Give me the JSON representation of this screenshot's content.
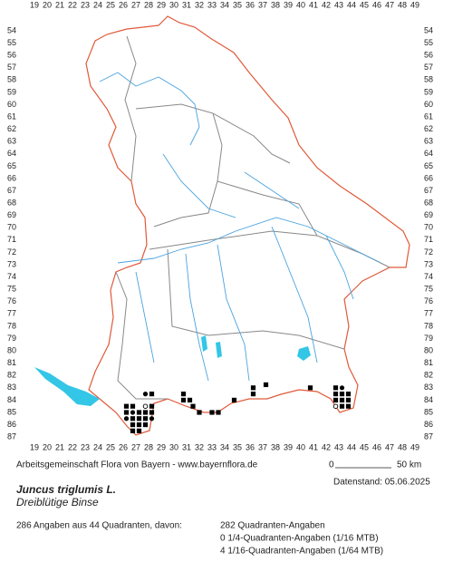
{
  "map": {
    "columns": [
      19,
      20,
      21,
      22,
      23,
      24,
      25,
      26,
      27,
      28,
      29,
      30,
      31,
      32,
      33,
      34,
      35,
      36,
      37,
      38,
      39,
      40,
      41,
      42,
      43,
      44,
      45,
      46,
      47,
      48,
      49
    ],
    "rows": [
      54,
      55,
      56,
      57,
      58,
      59,
      60,
      61,
      62,
      63,
      64,
      65,
      66,
      67,
      68,
      69,
      70,
      71,
      72,
      73,
      74,
      75,
      76,
      77,
      78,
      79,
      80,
      81,
      82,
      83,
      84,
      85,
      86,
      87
    ],
    "points": [
      {
        "x": 27.75,
        "y": 83.5,
        "symbol": "dot"
      },
      {
        "x": 28.25,
        "y": 83.5,
        "symbol": "square"
      },
      {
        "x": 30.75,
        "y": 83.5,
        "symbol": "square"
      },
      {
        "x": 31.25,
        "y": 84,
        "symbol": "square"
      },
      {
        "x": 30.75,
        "y": 84,
        "symbol": "square"
      },
      {
        "x": 31.5,
        "y": 84.5,
        "symbol": "square"
      },
      {
        "x": 32,
        "y": 85,
        "symbol": "square"
      },
      {
        "x": 33,
        "y": 85,
        "symbol": "square"
      },
      {
        "x": 33.5,
        "y": 85,
        "symbol": "square"
      },
      {
        "x": 34.75,
        "y": 84,
        "symbol": "square"
      },
      {
        "x": 36.25,
        "y": 83,
        "symbol": "square"
      },
      {
        "x": 36.25,
        "y": 83.5,
        "symbol": "square"
      },
      {
        "x": 37.25,
        "y": 82.75,
        "symbol": "square"
      },
      {
        "x": 40.75,
        "y": 83,
        "symbol": "square"
      },
      {
        "x": 42.75,
        "y": 83,
        "symbol": "square"
      },
      {
        "x": 43.25,
        "y": 83,
        "symbol": "dot"
      },
      {
        "x": 42.75,
        "y": 83.5,
        "symbol": "square"
      },
      {
        "x": 43.25,
        "y": 83.5,
        "symbol": "square"
      },
      {
        "x": 43.75,
        "y": 83.5,
        "symbol": "square"
      },
      {
        "x": 42.75,
        "y": 84,
        "symbol": "square"
      },
      {
        "x": 43.25,
        "y": 84,
        "symbol": "square"
      },
      {
        "x": 43.75,
        "y": 84,
        "symbol": "square"
      },
      {
        "x": 42.75,
        "y": 84.5,
        "symbol": "circle"
      },
      {
        "x": 43.25,
        "y": 84.5,
        "symbol": "square"
      },
      {
        "x": 43.75,
        "y": 84.5,
        "symbol": "square"
      },
      {
        "x": 26.25,
        "y": 84.5,
        "symbol": "square"
      },
      {
        "x": 26.75,
        "y": 84.5,
        "symbol": "square"
      },
      {
        "x": 27.75,
        "y": 84.5,
        "symbol": "circle"
      },
      {
        "x": 28.25,
        "y": 84.5,
        "symbol": "square"
      },
      {
        "x": 26.25,
        "y": 85,
        "symbol": "square"
      },
      {
        "x": 26.75,
        "y": 85,
        "symbol": "dot"
      },
      {
        "x": 27.25,
        "y": 85,
        "symbol": "square"
      },
      {
        "x": 27.75,
        "y": 85,
        "symbol": "square"
      },
      {
        "x": 28.25,
        "y": 85,
        "symbol": "square"
      },
      {
        "x": 26.25,
        "y": 85.5,
        "symbol": "dot"
      },
      {
        "x": 26.75,
        "y": 85.5,
        "symbol": "square"
      },
      {
        "x": 27.25,
        "y": 85.5,
        "symbol": "square"
      },
      {
        "x": 27.75,
        "y": 85.5,
        "symbol": "square"
      },
      {
        "x": 28.25,
        "y": 85.5,
        "symbol": "dot"
      },
      {
        "x": 26.75,
        "y": 86,
        "symbol": "square"
      },
      {
        "x": 27.25,
        "y": 86,
        "symbol": "square"
      },
      {
        "x": 27.75,
        "y": 86,
        "symbol": "square"
      },
      {
        "x": 26.75,
        "y": 86.5,
        "symbol": "square"
      },
      {
        "x": 27.25,
        "y": 86.5,
        "symbol": "square"
      }
    ]
  },
  "footer": {
    "credit": "Arbeitsgemeinschaft Flora von Bayern - www.bayernflora.de",
    "scale_zero": "0",
    "scale_label": "50 km",
    "date": "Datenstand: 05.06.2025",
    "species": "Juncus triglumis L.",
    "common_name": "Dreiblütige Binse",
    "summary": "286 Angaben aus 44 Quadranten, davon:",
    "stats": [
      "282 Quadranten-Angaben",
      "0 1/4-Quadranten-Angaben (1/16 MTB)",
      "4 1/16-Quadranten-Angaben (1/64 MTB)"
    ]
  }
}
